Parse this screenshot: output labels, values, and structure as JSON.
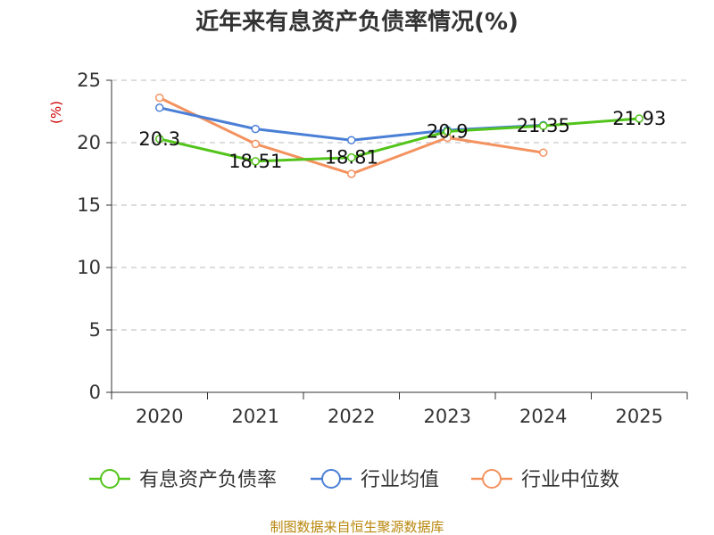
{
  "chart_data": {
    "type": "line",
    "title": "近年来有息资产负债率情况(%)",
    "ylabel": "(%)",
    "categories": [
      "2020",
      "2021",
      "2022",
      "2023",
      "2024",
      "2025"
    ],
    "ylim": [
      0,
      25
    ],
    "yticks": [
      "0",
      "5",
      "10",
      "15",
      "20",
      "25"
    ],
    "grid": true,
    "legend_position": "bottom",
    "series": [
      {
        "name": "有息资产负债率",
        "color": "#52c41a",
        "values": [
          20.3,
          18.51,
          18.81,
          20.9,
          21.35,
          21.93
        ],
        "labels": [
          "20.3",
          "18.51",
          "18.81",
          "20.9",
          "21.35",
          "21.93"
        ]
      },
      {
        "name": "行业均值",
        "color": "#4a7fd6",
        "values": [
          22.8,
          21.1,
          20.2,
          21.0,
          21.4,
          null
        ]
      },
      {
        "name": "行业中位数",
        "color": "#f4925f",
        "values": [
          23.6,
          19.9,
          17.5,
          20.4,
          19.2,
          null
        ]
      }
    ]
  },
  "source": "制图数据来自恒生聚源数据库"
}
